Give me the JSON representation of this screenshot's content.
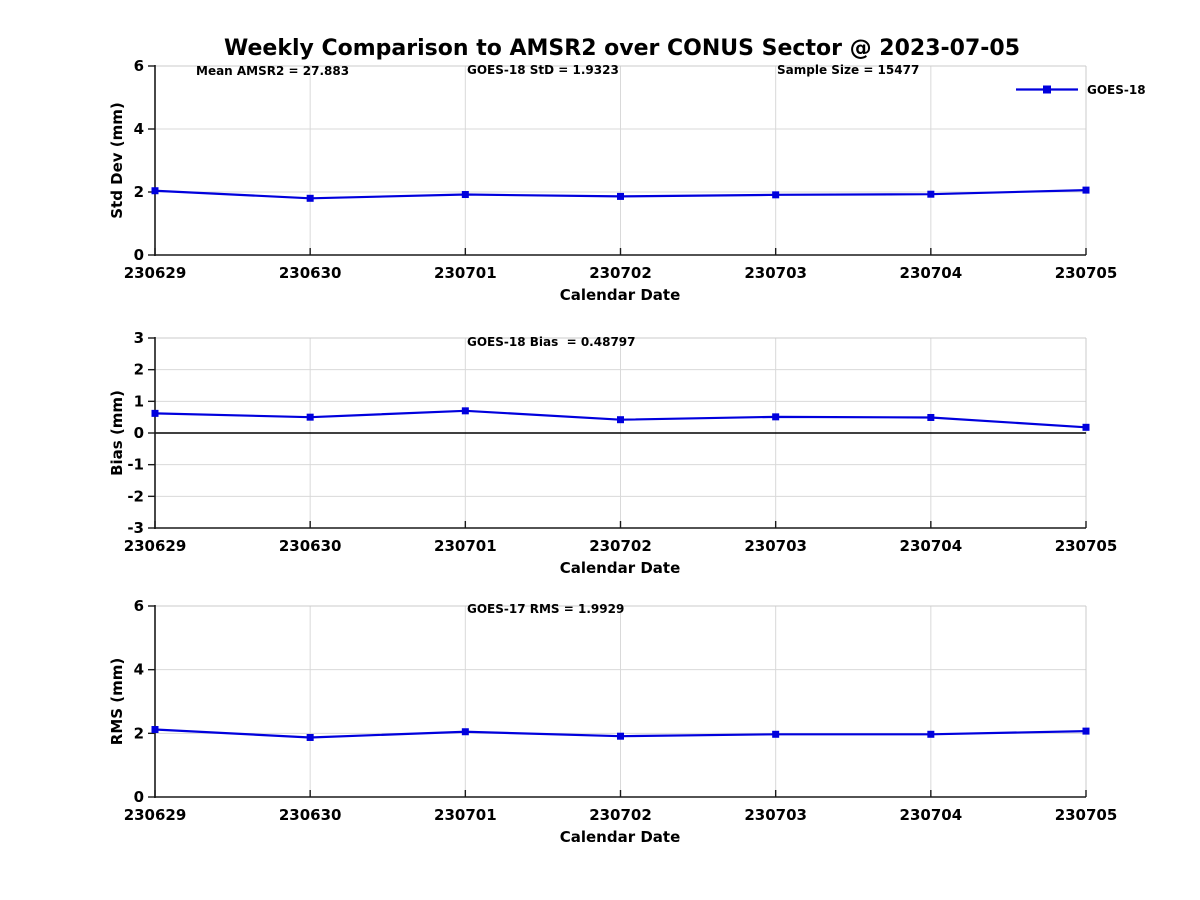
{
  "title": "Weekly Comparison to AMSR2 over CONUS Sector @ 2023-07-05",
  "legend": {
    "label": "GOES-18",
    "position": "top-right-outside"
  },
  "colors": {
    "line": "#0000dd",
    "grid": "#d9d9d9",
    "frame": "#cbcbcb",
    "zero": "#000000",
    "text": "#000000",
    "background": "#ffffff"
  },
  "chart_data": [
    {
      "type": "line",
      "ylabel": "Std Dev (mm)",
      "xlabel": "Calendar Date",
      "ylim": [
        0,
        6
      ],
      "yticks": [
        0,
        2,
        4,
        6
      ],
      "grid": true,
      "zero_line": false,
      "categories": [
        "230629",
        "230630",
        "230701",
        "230702",
        "230703",
        "230704",
        "230705"
      ],
      "series": [
        {
          "name": "GOES-18",
          "marker": "square",
          "values": [
            2.04,
            1.8,
            1.92,
            1.86,
            1.91,
            1.93,
            2.06
          ]
        }
      ],
      "annotations": [
        "Mean AMSR2 = 27.883",
        "GOES-18 StD = 1.9323",
        "Sample Size = 15477"
      ]
    },
    {
      "type": "line",
      "ylabel": "Bias (mm)",
      "xlabel": "Calendar Date",
      "ylim": [
        -3,
        3
      ],
      "yticks": [
        -3,
        -2,
        -1,
        0,
        1,
        2,
        3
      ],
      "grid": true,
      "zero_line": true,
      "categories": [
        "230629",
        "230630",
        "230701",
        "230702",
        "230703",
        "230704",
        "230705"
      ],
      "series": [
        {
          "name": "GOES-18",
          "marker": "square",
          "values": [
            0.62,
            0.5,
            0.7,
            0.42,
            0.51,
            0.49,
            0.18
          ]
        }
      ],
      "annotations": [
        "GOES-18 Bias  = 0.48797"
      ]
    },
    {
      "type": "line",
      "ylabel": "RMS (mm)",
      "xlabel": "Calendar Date",
      "ylim": [
        0,
        6
      ],
      "yticks": [
        0,
        2,
        4,
        6
      ],
      "grid": true,
      "zero_line": false,
      "categories": [
        "230629",
        "230630",
        "230701",
        "230702",
        "230703",
        "230704",
        "230705"
      ],
      "series": [
        {
          "name": "GOES-18",
          "marker": "square",
          "values": [
            2.12,
            1.87,
            2.05,
            1.91,
            1.97,
            1.97,
            2.07
          ]
        }
      ],
      "annotations": [
        "GOES-17 RMS = 1.9929"
      ]
    }
  ]
}
